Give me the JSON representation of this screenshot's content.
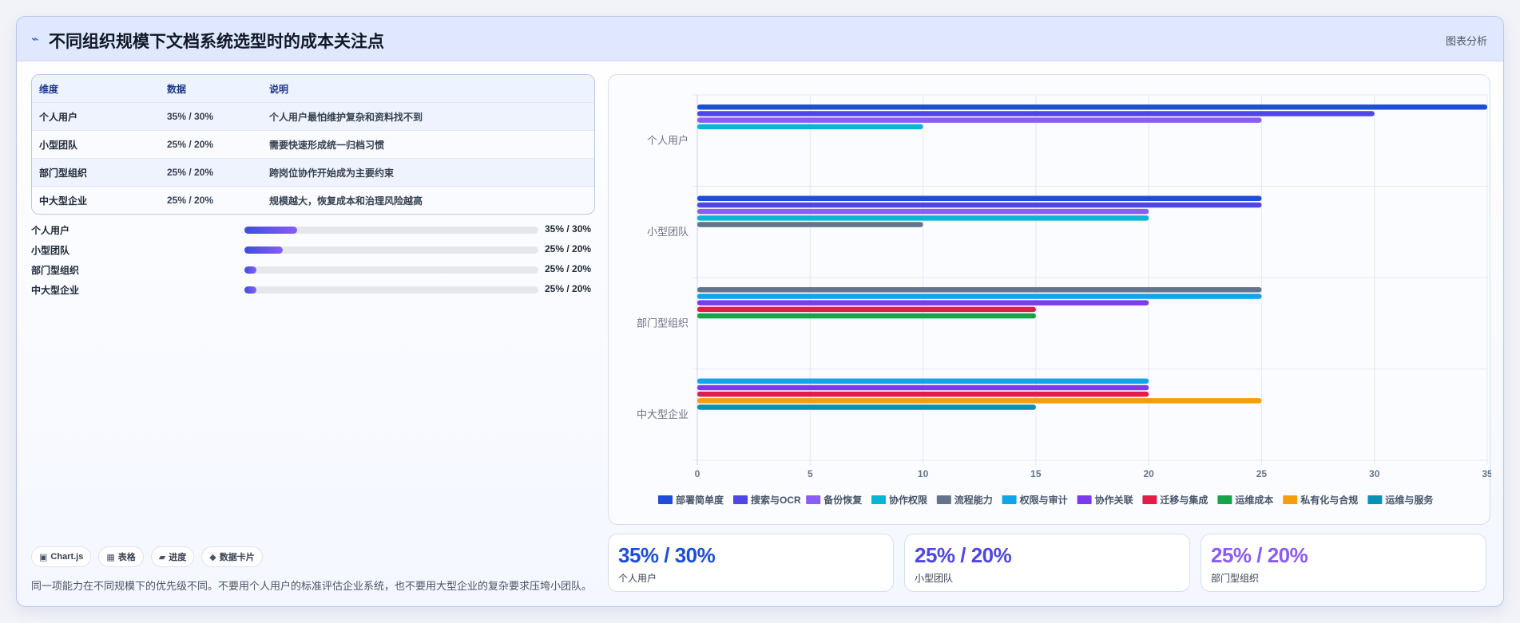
{
  "header": {
    "icon": "lightning-icon",
    "title": "不同组织规模下文档系统选型时的成本关注点",
    "tag": "图表分析"
  },
  "table": {
    "columns": [
      "维度",
      "数据",
      "说明"
    ],
    "rows": [
      [
        "个人用户",
        "35% / 30%",
        "个人用户最怕维护复杂和资料找不到"
      ],
      [
        "小型团队",
        "25% / 20%",
        "需要快速形成统一归档习惯"
      ],
      [
        "部门型组织",
        "25% / 20%",
        "跨岗位协作开始成为主要约束"
      ],
      [
        "中大型企业",
        "25% / 20%",
        "规模越大，恢复成本和治理风险越高"
      ]
    ]
  },
  "progress": [
    {
      "label": "个人用户",
      "value": "35% / 30%",
      "fill": 0.18
    },
    {
      "label": "小型团队",
      "value": "25% / 20%",
      "fill": 0.13
    },
    {
      "label": "部门型组织",
      "value": "25% / 20%",
      "fill": 0.04
    },
    {
      "label": "中大型企业",
      "value": "25% / 20%",
      "fill": 0.04
    }
  ],
  "pills": [
    {
      "icon": "chart-icon",
      "glyph": "▣",
      "label": "Chart.js"
    },
    {
      "icon": "table-icon",
      "glyph": "▦",
      "label": "表格"
    },
    {
      "icon": "progress-icon",
      "glyph": "▰",
      "label": "进度"
    },
    {
      "icon": "diamond-icon",
      "glyph": "◆",
      "label": "数据卡片"
    }
  ],
  "note": "同一项能力在不同规模下的优先级不同。不要用个人用户的标准评估企业系统，也不要用大型企业的复杂要求压垮小团队。",
  "kpis": [
    {
      "value": "35% / 30%",
      "label": "个人用户",
      "color": "#1d4ed8"
    },
    {
      "value": "25% / 20%",
      "label": "小型团队",
      "color": "#4f46e5"
    },
    {
      "value": "25% / 20%",
      "label": "部门型组织",
      "color": "#8b5cf6"
    }
  ],
  "chart_data": {
    "type": "bar",
    "orientation": "horizontal",
    "categories": [
      "个人用户",
      "小型团队",
      "部门型组织",
      "中大型企业"
    ],
    "xlim": [
      0,
      35
    ],
    "xticks": [
      0,
      5,
      10,
      15,
      20,
      25,
      30,
      35
    ],
    "grid": true,
    "legend_position": "bottom",
    "series": [
      {
        "name": "部署简单度",
        "color": "#1d4ed8",
        "values": [
          35,
          25,
          null,
          null
        ]
      },
      {
        "name": "搜索与OCR",
        "color": "#4f46e5",
        "values": [
          30,
          25,
          null,
          null
        ]
      },
      {
        "name": "备份恢复",
        "color": "#8b5cf6",
        "values": [
          25,
          20,
          null,
          null
        ]
      },
      {
        "name": "协作权限",
        "color": "#06b6d4",
        "values": [
          10,
          20,
          null,
          null
        ]
      },
      {
        "name": "流程能力",
        "color": "#64748b",
        "values": [
          null,
          10,
          25,
          null
        ]
      },
      {
        "name": "权限与审计",
        "color": "#0ea5e9",
        "values": [
          null,
          null,
          25,
          20
        ]
      },
      {
        "name": "协作关联",
        "color": "#7c3aed",
        "values": [
          null,
          null,
          20,
          20
        ]
      },
      {
        "name": "迁移与集成",
        "color": "#e11d48",
        "values": [
          null,
          null,
          15,
          20
        ]
      },
      {
        "name": "运维成本",
        "color": "#16a34a",
        "values": [
          null,
          null,
          15,
          null
        ]
      },
      {
        "name": "私有化与合规",
        "color": "#f59e0b",
        "values": [
          null,
          null,
          null,
          25
        ]
      },
      {
        "name": "运维与服务",
        "color": "#0891b2",
        "values": [
          null,
          null,
          null,
          15
        ]
      }
    ]
  }
}
